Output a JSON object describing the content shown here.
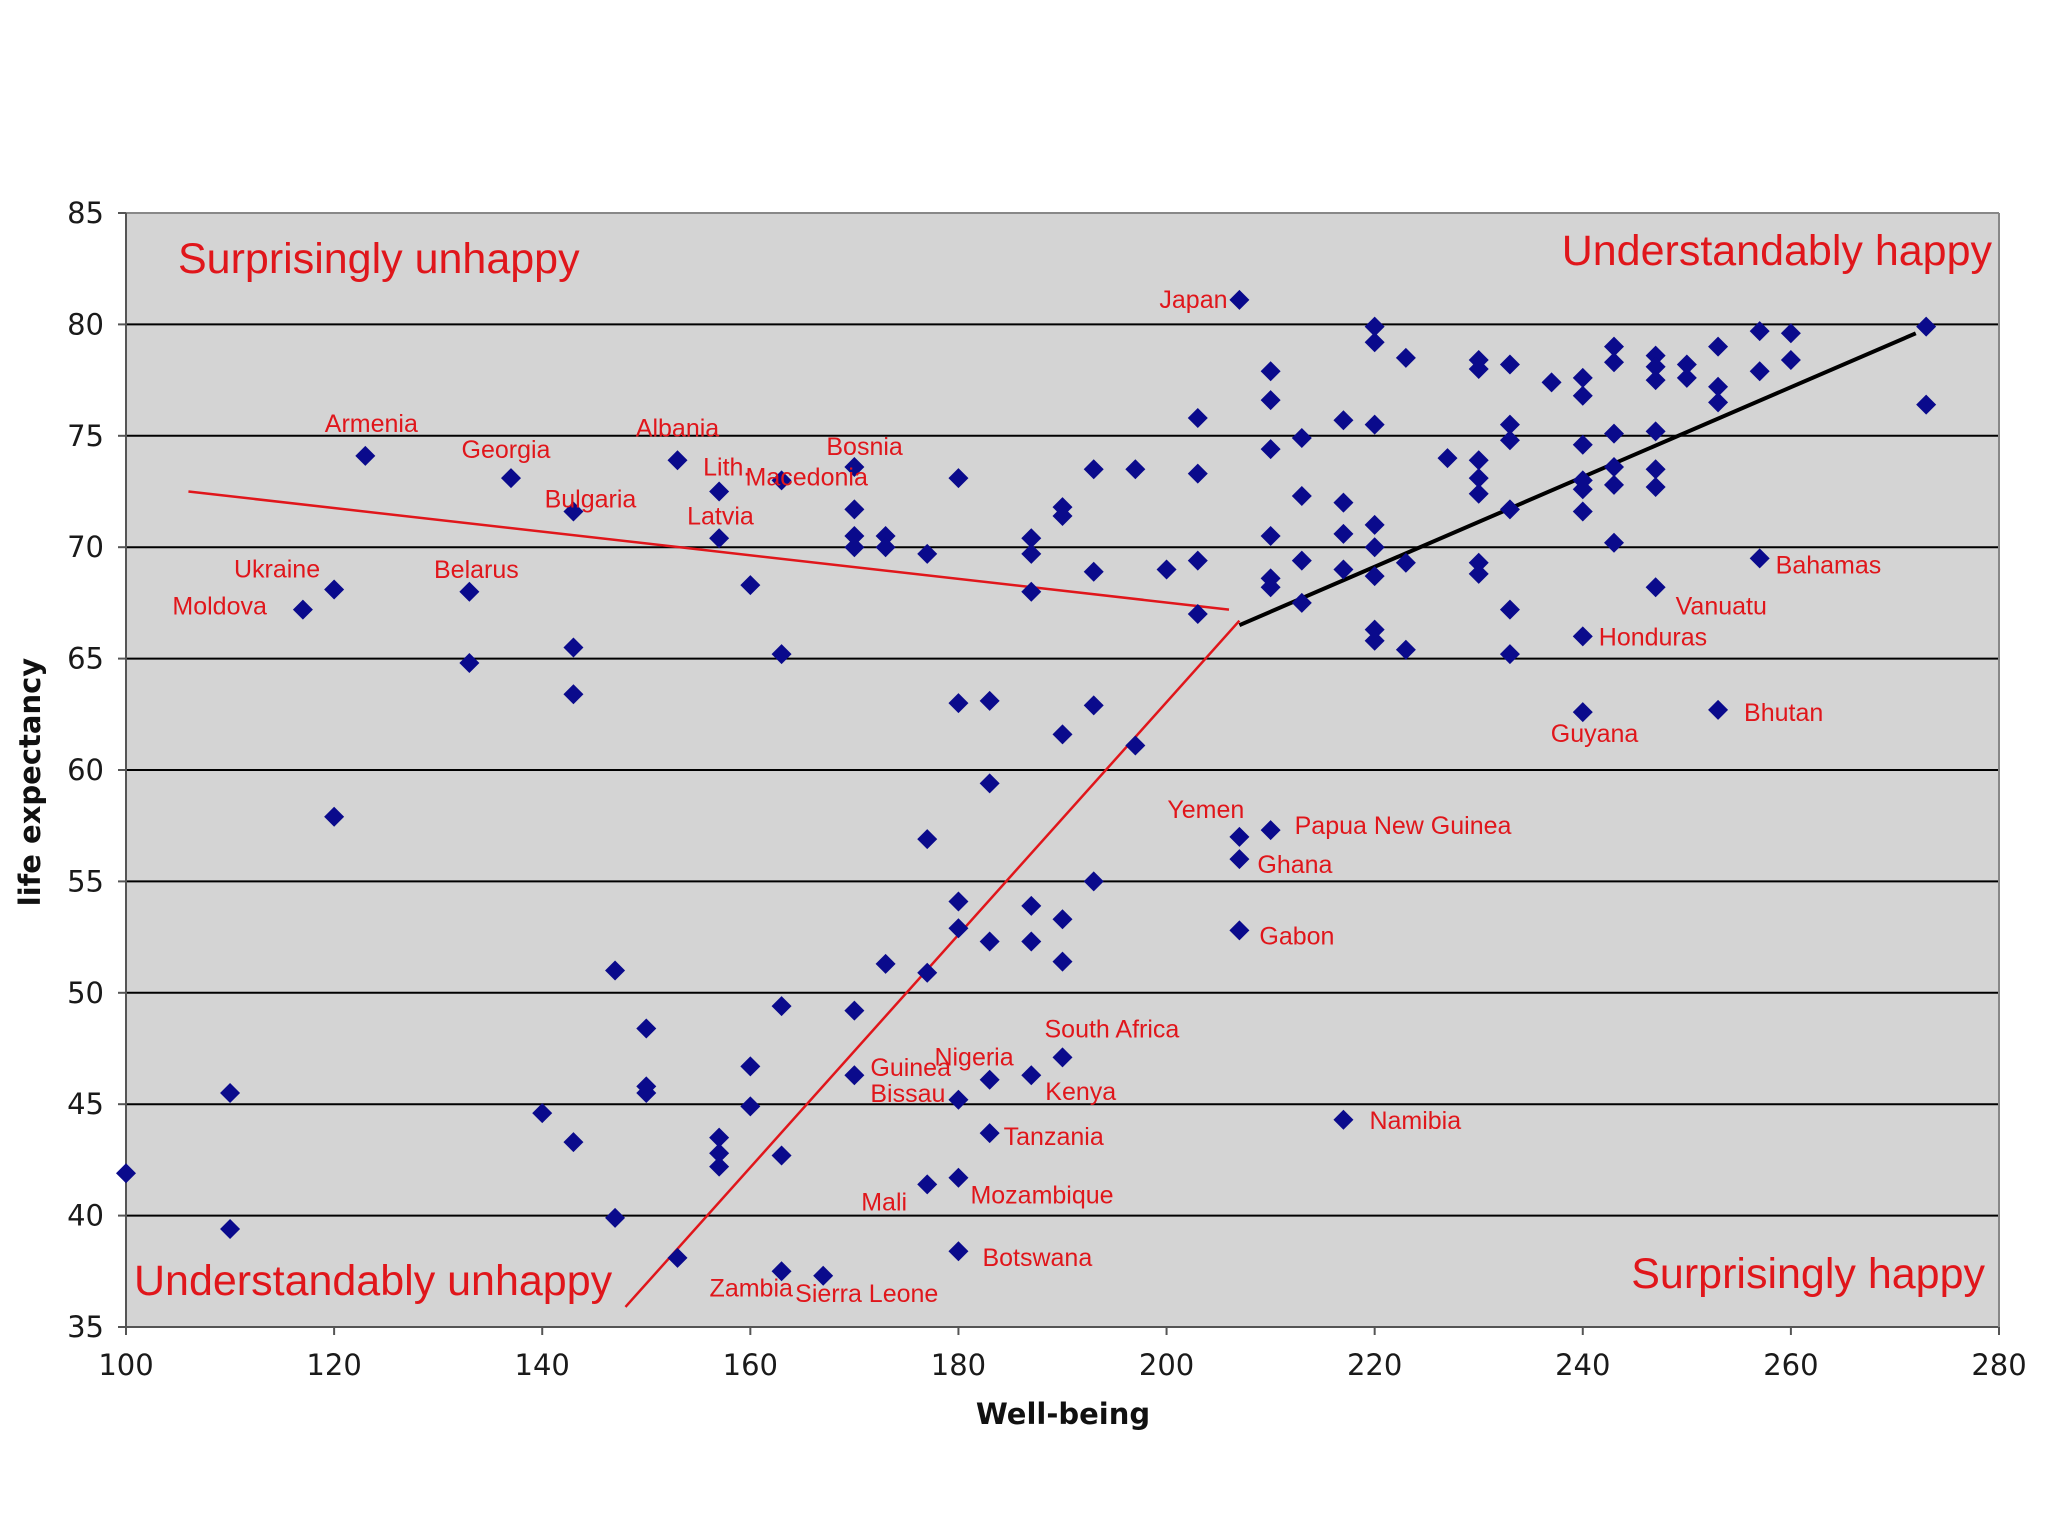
{
  "colors": {
    "plot_bg": "#d4d4d4",
    "grid": "#000000",
    "marker": "#0a0a8c",
    "annotation": "#e0161b",
    "trend_black": "#000000",
    "trend_red": "#e0161b"
  },
  "chart_data": {
    "type": "scatter",
    "title": "",
    "xlabel": "Well-being",
    "ylabel": "life expectancy",
    "xlim": [
      100,
      280
    ],
    "ylim": [
      35,
      85
    ],
    "x_ticks": [
      100,
      120,
      140,
      160,
      180,
      200,
      220,
      240,
      260,
      280
    ],
    "y_ticks": [
      35,
      40,
      45,
      50,
      55,
      60,
      65,
      70,
      75,
      80,
      85
    ],
    "gridlines": "horizontal",
    "legend": "none",
    "corner_labels": {
      "top_left": "Surprisingly unhappy",
      "top_right": "Understandably happy",
      "bottom_left": "Understandably unhappy",
      "bottom_right": "Surprisingly happy"
    },
    "trend_lines": [
      {
        "name": "red-upper",
        "color": "red",
        "from": [
          106,
          72.5
        ],
        "to": [
          206,
          67.2
        ]
      },
      {
        "name": "red-lower",
        "color": "red",
        "from": [
          148,
          35.9
        ],
        "to": [
          207,
          66.7
        ]
      },
      {
        "name": "black",
        "color": "black",
        "from": [
          207,
          66.5
        ],
        "to": [
          272,
          79.6
        ]
      }
    ],
    "points": [
      {
        "x": 100,
        "y": 41.9
      },
      {
        "x": 110,
        "y": 45.5
      },
      {
        "x": 110,
        "y": 39.4
      },
      {
        "x": 117,
        "y": 67.2,
        "label": "Moldova"
      },
      {
        "x": 120,
        "y": 68.1,
        "label": "Ukraine"
      },
      {
        "x": 120,
        "y": 57.9
      },
      {
        "x": 123,
        "y": 74.1,
        "label": "Armenia"
      },
      {
        "x": 133,
        "y": 68.0,
        "label": "Belarus"
      },
      {
        "x": 133,
        "y": 64.8
      },
      {
        "x": 137,
        "y": 73.1,
        "label": "Georgia"
      },
      {
        "x": 143,
        "y": 71.6,
        "label": "Bulgaria"
      },
      {
        "x": 143,
        "y": 65.5
      },
      {
        "x": 143,
        "y": 63.4
      },
      {
        "x": 140,
        "y": 44.6
      },
      {
        "x": 143,
        "y": 43.3
      },
      {
        "x": 147,
        "y": 51.0
      },
      {
        "x": 147,
        "y": 39.9
      },
      {
        "x": 150,
        "y": 48.4
      },
      {
        "x": 150,
        "y": 45.8
      },
      {
        "x": 150,
        "y": 45.5
      },
      {
        "x": 153,
        "y": 73.9,
        "label": "Albania"
      },
      {
        "x": 157,
        "y": 72.5,
        "label": "Lith."
      },
      {
        "x": 157,
        "y": 70.4,
        "label": "Latvia"
      },
      {
        "x": 153,
        "y": 38.1
      },
      {
        "x": 157,
        "y": 43.5
      },
      {
        "x": 157,
        "y": 42.8
      },
      {
        "x": 157,
        "y": 42.2
      },
      {
        "x": 160,
        "y": 68.3
      },
      {
        "x": 160,
        "y": 46.7
      },
      {
        "x": 160,
        "y": 44.9
      },
      {
        "x": 163,
        "y": 73.0,
        "label": "Macedonia"
      },
      {
        "x": 163,
        "y": 65.2
      },
      {
        "x": 163,
        "y": 49.4
      },
      {
        "x": 163,
        "y": 42.7
      },
      {
        "x": 163,
        "y": 37.5,
        "label": "Zambia"
      },
      {
        "x": 167,
        "y": 37.3,
        "label": "Sierra Leone"
      },
      {
        "x": 170,
        "y": 73.6,
        "label": "Bosnia"
      },
      {
        "x": 170,
        "y": 71.7
      },
      {
        "x": 170,
        "y": 70.5
      },
      {
        "x": 170,
        "y": 70.0
      },
      {
        "x": 173,
        "y": 70.5
      },
      {
        "x": 173,
        "y": 70.0
      },
      {
        "x": 170,
        "y": 49.2
      },
      {
        "x": 170,
        "y": 46.3,
        "label": "Guinea Bissau"
      },
      {
        "x": 173,
        "y": 51.3
      },
      {
        "x": 177,
        "y": 69.7
      },
      {
        "x": 177,
        "y": 56.9
      },
      {
        "x": 177,
        "y": 50.9
      },
      {
        "x": 177,
        "y": 41.4,
        "label": "Mali"
      },
      {
        "x": 180,
        "y": 73.1
      },
      {
        "x": 180,
        "y": 63.0
      },
      {
        "x": 180,
        "y": 54.1
      },
      {
        "x": 180,
        "y": 52.9
      },
      {
        "x": 180,
        "y": 45.2,
        "label": "Nigeria"
      },
      {
        "x": 180,
        "y": 41.7,
        "label": "Mozambique"
      },
      {
        "x": 180,
        "y": 38.4,
        "label": "Botswana"
      },
      {
        "x": 183,
        "y": 63.1
      },
      {
        "x": 183,
        "y": 59.4
      },
      {
        "x": 183,
        "y": 52.3
      },
      {
        "x": 183,
        "y": 46.1
      },
      {
        "x": 183,
        "y": 43.7,
        "label": "Tanzania"
      },
      {
        "x": 187,
        "y": 70.4
      },
      {
        "x": 187,
        "y": 69.7
      },
      {
        "x": 187,
        "y": 68.0
      },
      {
        "x": 187,
        "y": 53.9
      },
      {
        "x": 187,
        "y": 52.3
      },
      {
        "x": 187,
        "y": 46.3,
        "label": "Kenya"
      },
      {
        "x": 190,
        "y": 71.8
      },
      {
        "x": 190,
        "y": 71.4
      },
      {
        "x": 190,
        "y": 61.6
      },
      {
        "x": 190,
        "y": 53.3
      },
      {
        "x": 190,
        "y": 51.4
      },
      {
        "x": 190,
        "y": 47.1,
        "label": "South Africa"
      },
      {
        "x": 193,
        "y": 73.5
      },
      {
        "x": 193,
        "y": 68.9
      },
      {
        "x": 193,
        "y": 62.9
      },
      {
        "x": 193,
        "y": 55.0
      },
      {
        "x": 197,
        "y": 73.5
      },
      {
        "x": 197,
        "y": 61.1
      },
      {
        "x": 200,
        "y": 69.0
      },
      {
        "x": 203,
        "y": 75.8
      },
      {
        "x": 203,
        "y": 73.3
      },
      {
        "x": 203,
        "y": 69.4
      },
      {
        "x": 203,
        "y": 67.0
      },
      {
        "x": 207,
        "y": 81.1,
        "label": "Japan"
      },
      {
        "x": 207,
        "y": 57.0,
        "label": "Yemen"
      },
      {
        "x": 207,
        "y": 56.0,
        "label": "Ghana"
      },
      {
        "x": 207,
        "y": 52.8,
        "label": "Gabon"
      },
      {
        "x": 210,
        "y": 57.3,
        "label": "Papua New Guinea"
      },
      {
        "x": 210,
        "y": 77.9
      },
      {
        "x": 210,
        "y": 76.6
      },
      {
        "x": 210,
        "y": 74.4
      },
      {
        "x": 210,
        "y": 70.5
      },
      {
        "x": 210,
        "y": 68.6
      },
      {
        "x": 210,
        "y": 68.2
      },
      {
        "x": 213,
        "y": 74.9
      },
      {
        "x": 213,
        "y": 72.3
      },
      {
        "x": 213,
        "y": 69.4
      },
      {
        "x": 213,
        "y": 67.5
      },
      {
        "x": 217,
        "y": 75.7
      },
      {
        "x": 217,
        "y": 72.0
      },
      {
        "x": 217,
        "y": 70.6
      },
      {
        "x": 217,
        "y": 69.0
      },
      {
        "x": 217,
        "y": 44.3,
        "label": "Namibia"
      },
      {
        "x": 220,
        "y": 79.9
      },
      {
        "x": 220,
        "y": 79.2
      },
      {
        "x": 220,
        "y": 75.5
      },
      {
        "x": 220,
        "y": 71.0
      },
      {
        "x": 220,
        "y": 70.0
      },
      {
        "x": 220,
        "y": 68.7
      },
      {
        "x": 220,
        "y": 66.3
      },
      {
        "x": 220,
        "y": 65.8
      },
      {
        "x": 223,
        "y": 78.5
      },
      {
        "x": 223,
        "y": 69.3
      },
      {
        "x": 223,
        "y": 65.4
      },
      {
        "x": 227,
        "y": 74.0
      },
      {
        "x": 230,
        "y": 78.4
      },
      {
        "x": 230,
        "y": 78.0
      },
      {
        "x": 230,
        "y": 73.9
      },
      {
        "x": 230,
        "y": 73.1
      },
      {
        "x": 230,
        "y": 72.4
      },
      {
        "x": 230,
        "y": 69.3
      },
      {
        "x": 230,
        "y": 68.8
      },
      {
        "x": 233,
        "y": 78.2
      },
      {
        "x": 233,
        "y": 75.5
      },
      {
        "x": 233,
        "y": 74.8
      },
      {
        "x": 233,
        "y": 71.7
      },
      {
        "x": 233,
        "y": 67.2
      },
      {
        "x": 233,
        "y": 65.2
      },
      {
        "x": 237,
        "y": 77.4
      },
      {
        "x": 240,
        "y": 77.6
      },
      {
        "x": 240,
        "y": 76.8
      },
      {
        "x": 240,
        "y": 74.6
      },
      {
        "x": 240,
        "y": 73.0
      },
      {
        "x": 240,
        "y": 72.6
      },
      {
        "x": 240,
        "y": 71.6
      },
      {
        "x": 240,
        "y": 66.0,
        "label": "Honduras"
      },
      {
        "x": 240,
        "y": 62.6,
        "label": "Guyana"
      },
      {
        "x": 243,
        "y": 79.0
      },
      {
        "x": 243,
        "y": 78.3
      },
      {
        "x": 243,
        "y": 75.1
      },
      {
        "x": 243,
        "y": 73.6
      },
      {
        "x": 243,
        "y": 72.8
      },
      {
        "x": 243,
        "y": 70.2
      },
      {
        "x": 247,
        "y": 78.6
      },
      {
        "x": 247,
        "y": 78.1
      },
      {
        "x": 247,
        "y": 77.5
      },
      {
        "x": 247,
        "y": 75.2
      },
      {
        "x": 247,
        "y": 73.5
      },
      {
        "x": 247,
        "y": 72.7
      },
      {
        "x": 247,
        "y": 68.2,
        "label": "Vanuatu"
      },
      {
        "x": 250,
        "y": 78.2
      },
      {
        "x": 250,
        "y": 77.6
      },
      {
        "x": 253,
        "y": 79.0
      },
      {
        "x": 253,
        "y": 77.2
      },
      {
        "x": 253,
        "y": 76.5
      },
      {
        "x": 253,
        "y": 62.7,
        "label": "Bhutan"
      },
      {
        "x": 257,
        "y": 79.7
      },
      {
        "x": 257,
        "y": 77.9
      },
      {
        "x": 257,
        "y": 69.5,
        "label": "Bahamas"
      },
      {
        "x": 260,
        "y": 79.6
      },
      {
        "x": 260,
        "y": 78.4
      },
      {
        "x": 273,
        "y": 79.9
      },
      {
        "x": 273,
        "y": 76.4
      }
    ]
  }
}
